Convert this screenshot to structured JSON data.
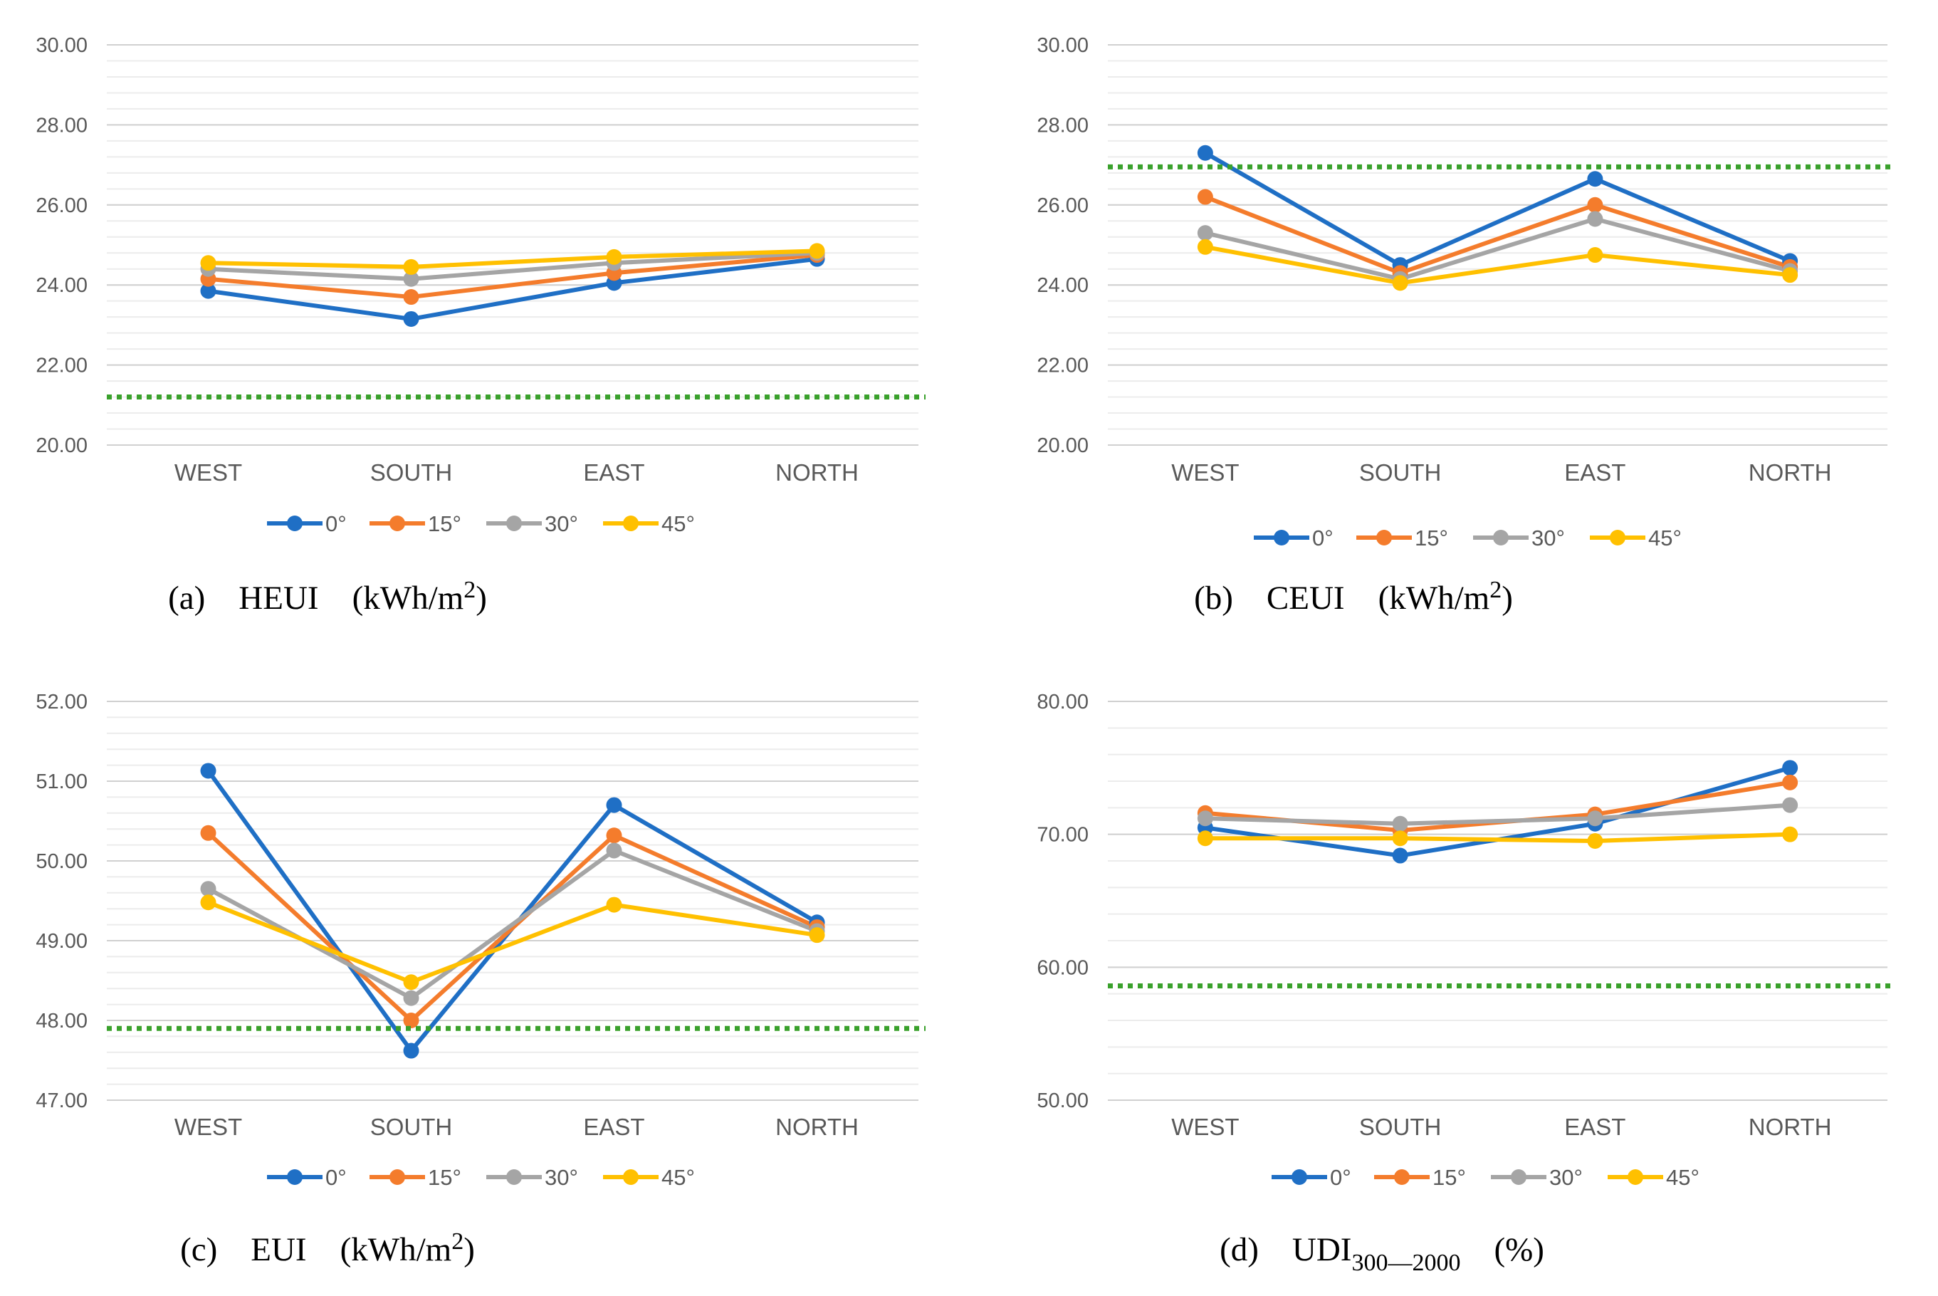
{
  "colors": {
    "s0": "#1f6fc5",
    "s15": "#f47c2c",
    "s30": "#a5a5a5",
    "s45": "#ffc000",
    "threshold": "#3aa12c",
    "grid_major": "#d0d0d0",
    "grid_minor": "#ececec"
  },
  "chart_data": [
    {
      "type": "line",
      "panel_label": "(a)",
      "title": "HEUI",
      "unit": "(kWh/m",
      "unit_sup": "2",
      "unit_end": ")",
      "categories": [
        "WEST",
        "SOUTH",
        "EAST",
        "NORTH"
      ],
      "ylim": [
        20,
        30
      ],
      "ymajor": 2,
      "yminor": 0.4,
      "ytick_labels": [
        "20.00",
        "22.00",
        "24.00",
        "26.00",
        "28.00",
        "30.00"
      ],
      "series": [
        {
          "name": "0°",
          "values": [
            23.85,
            23.15,
            24.05,
            24.65
          ]
        },
        {
          "name": "15°",
          "values": [
            24.15,
            23.7,
            24.3,
            24.75
          ]
        },
        {
          "name": "30°",
          "values": [
            24.4,
            24.15,
            24.55,
            24.8
          ]
        },
        {
          "name": "45°",
          "values": [
            24.55,
            24.45,
            24.7,
            24.85
          ]
        }
      ],
      "reference_line": 21.2,
      "legend": "bottom"
    },
    {
      "type": "line",
      "panel_label": "(b)",
      "title": "CEUI",
      "unit": "(kWh/m",
      "unit_sup": "2",
      "unit_end": ")",
      "categories": [
        "WEST",
        "SOUTH",
        "EAST",
        "NORTH"
      ],
      "ylim": [
        20,
        30
      ],
      "ymajor": 2,
      "yminor": 0.4,
      "ytick_labels": [
        "20.00",
        "22.00",
        "24.00",
        "26.00",
        "28.00",
        "30.00"
      ],
      "series": [
        {
          "name": "0°",
          "values": [
            27.3,
            24.5,
            26.65,
            24.6
          ]
        },
        {
          "name": "15°",
          "values": [
            26.2,
            24.3,
            26.0,
            24.45
          ]
        },
        {
          "name": "30°",
          "values": [
            25.3,
            24.15,
            25.65,
            24.35
          ]
        },
        {
          "name": "45°",
          "values": [
            24.95,
            24.05,
            24.75,
            24.25
          ]
        }
      ],
      "reference_line": 26.95,
      "legend": "bottom"
    },
    {
      "type": "line",
      "panel_label": "(c)",
      "title": "EUI",
      "unit": "(kWh/m",
      "unit_sup": "2",
      "unit_end": ")",
      "categories": [
        "WEST",
        "SOUTH",
        "EAST",
        "NORTH"
      ],
      "ylim": [
        47,
        52
      ],
      "ymajor": 1,
      "yminor": 0.2,
      "ytick_labels": [
        "47.00",
        "48.00",
        "49.00",
        "50.00",
        "51.00",
        "52.00"
      ],
      "series": [
        {
          "name": "0°",
          "values": [
            51.13,
            47.62,
            50.7,
            49.23
          ]
        },
        {
          "name": "15°",
          "values": [
            50.35,
            48.0,
            50.32,
            49.17
          ]
        },
        {
          "name": "30°",
          "values": [
            49.65,
            48.28,
            50.13,
            49.12
          ]
        },
        {
          "name": "45°",
          "values": [
            49.48,
            48.48,
            49.45,
            49.07
          ]
        }
      ],
      "reference_line": 47.9,
      "legend": "bottom"
    },
    {
      "type": "line",
      "panel_label": "(d)",
      "title": "UDI",
      "title_sub": "300—2000",
      "unit": "(%)",
      "unit_sup": "",
      "unit_end": "",
      "categories": [
        "WEST",
        "SOUTH",
        "EAST",
        "NORTH"
      ],
      "ylim": [
        50,
        80
      ],
      "ymajor": 10,
      "yminor": 2,
      "ytick_labels": [
        "50.00",
        "60.00",
        "70.00",
        "80.00"
      ],
      "series": [
        {
          "name": "0°",
          "values": [
            70.5,
            68.4,
            70.8,
            75.0
          ]
        },
        {
          "name": "15°",
          "values": [
            71.6,
            70.3,
            71.5,
            73.9
          ]
        },
        {
          "name": "30°",
          "values": [
            71.2,
            70.8,
            71.2,
            72.2
          ]
        },
        {
          "name": "45°",
          "values": [
            69.7,
            69.7,
            69.5,
            70.0
          ]
        }
      ],
      "reference_line": 58.6,
      "legend": "bottom"
    }
  ]
}
